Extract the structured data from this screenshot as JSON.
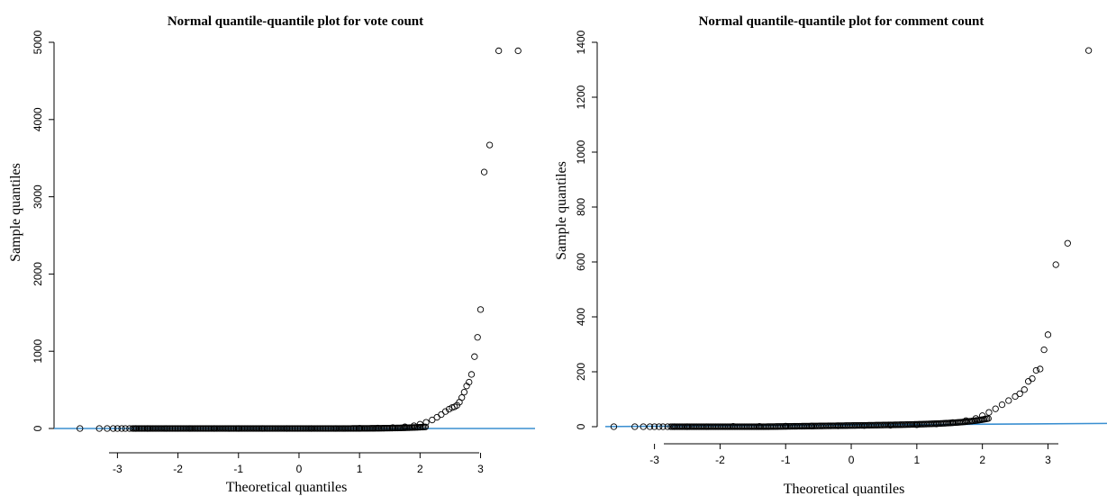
{
  "chart_data": [
    {
      "type": "scatter",
      "title": "Normal quantile-quantile plot for vote count",
      "xlabel": "Theoretical quantiles",
      "ylabel": "Sample quantiles",
      "xlim": [
        -3.75,
        3.9
      ],
      "ylim": [
        0,
        5000
      ],
      "xticks": [
        -3,
        -2,
        -1,
        0,
        1,
        2,
        3
      ],
      "yticks": [
        0,
        1000,
        2000,
        3000,
        4000,
        5000
      ],
      "reference_line": {
        "slope": 0,
        "intercept": 0,
        "color": "#3a8fd1"
      },
      "x": [
        -3.62,
        -3.3,
        -3.17,
        -3.07,
        -3.0,
        -2.93,
        -2.87,
        -2.8,
        -2.7,
        -2.5,
        -2.2,
        -1.8,
        -1.4,
        -1.0,
        -0.6,
        -0.2,
        0.2,
        0.6,
        1.0,
        1.3,
        1.55,
        1.75,
        1.9,
        2.0,
        2.1,
        2.2,
        2.28,
        2.35,
        2.42,
        2.48,
        2.53,
        2.57,
        2.61,
        2.65,
        2.69,
        2.73,
        2.77,
        2.81,
        2.85,
        2.9,
        2.95,
        3.0,
        3.06,
        3.15,
        3.3,
        3.62
      ],
      "y": [
        0,
        0,
        0,
        0,
        0,
        0,
        0,
        0,
        0,
        0,
        0,
        0,
        0,
        0,
        0,
        0,
        0,
        0,
        2,
        6,
        12,
        22,
        35,
        55,
        80,
        110,
        145,
        180,
        220,
        250,
        270,
        280,
        300,
        340,
        400,
        470,
        550,
        600,
        700,
        930,
        1180,
        1540,
        3320,
        3670,
        4890,
        4890
      ],
      "x_fix": [
        -3.62,
        -3.3,
        -3.17,
        -3.07,
        -3.0,
        -2.93,
        -2.87,
        -2.8,
        -2.7,
        -2.5,
        -2.2,
        -1.8,
        -1.4,
        -1.0,
        -0.6,
        -0.2,
        0.2,
        0.6,
        1.0,
        1.3,
        1.55,
        1.75,
        1.9,
        2.0,
        2.1,
        2.2,
        2.28,
        2.35,
        2.42,
        2.48,
        2.53,
        2.57,
        2.61,
        2.65,
        2.69,
        2.73,
        2.77,
        2.81,
        2.85,
        2.9,
        2.95,
        3.0,
        3.06,
        3.15,
        3.3,
        3.62
      ]
    },
    {
      "type": "scatter",
      "title": "Normal quantile-quantile plot for comment count",
      "xlabel": "Theoretical quantiles",
      "ylabel": "Sample quantiles",
      "xlim": [
        -3.75,
        3.9
      ],
      "ylim": [
        0,
        1400
      ],
      "xticks": [
        -3,
        -2,
        -1,
        0,
        1,
        2,
        3
      ],
      "yticks": [
        0,
        200,
        400,
        600,
        800,
        1000,
        1200,
        1400
      ],
      "reference_line": {
        "slope": 1.5,
        "intercept": 6,
        "color": "#3a8fd1"
      },
      "x": [
        -3.62,
        -3.3,
        -3.17,
        -3.07,
        -3.0,
        -2.93,
        -2.87,
        -2.8,
        -2.7,
        -2.5,
        -2.2,
        -1.8,
        -1.4,
        -1.0,
        -0.6,
        -0.2,
        0.2,
        0.6,
        1.0,
        1.3,
        1.55,
        1.75,
        1.9,
        2.0,
        2.1,
        2.2,
        2.3,
        2.4,
        2.5,
        2.57,
        2.64,
        2.7,
        2.76,
        2.82,
        2.88,
        2.94,
        3.0,
        3.12,
        3.3,
        3.62
      ],
      "y": [
        0,
        0,
        0,
        0,
        0,
        0,
        0,
        0,
        0,
        0,
        0,
        1,
        1,
        2,
        2,
        3,
        4,
        5,
        7,
        10,
        15,
        22,
        30,
        40,
        52,
        65,
        80,
        95,
        110,
        120,
        135,
        165,
        175,
        205,
        210,
        280,
        335,
        590,
        668,
        1370
      ]
    }
  ]
}
